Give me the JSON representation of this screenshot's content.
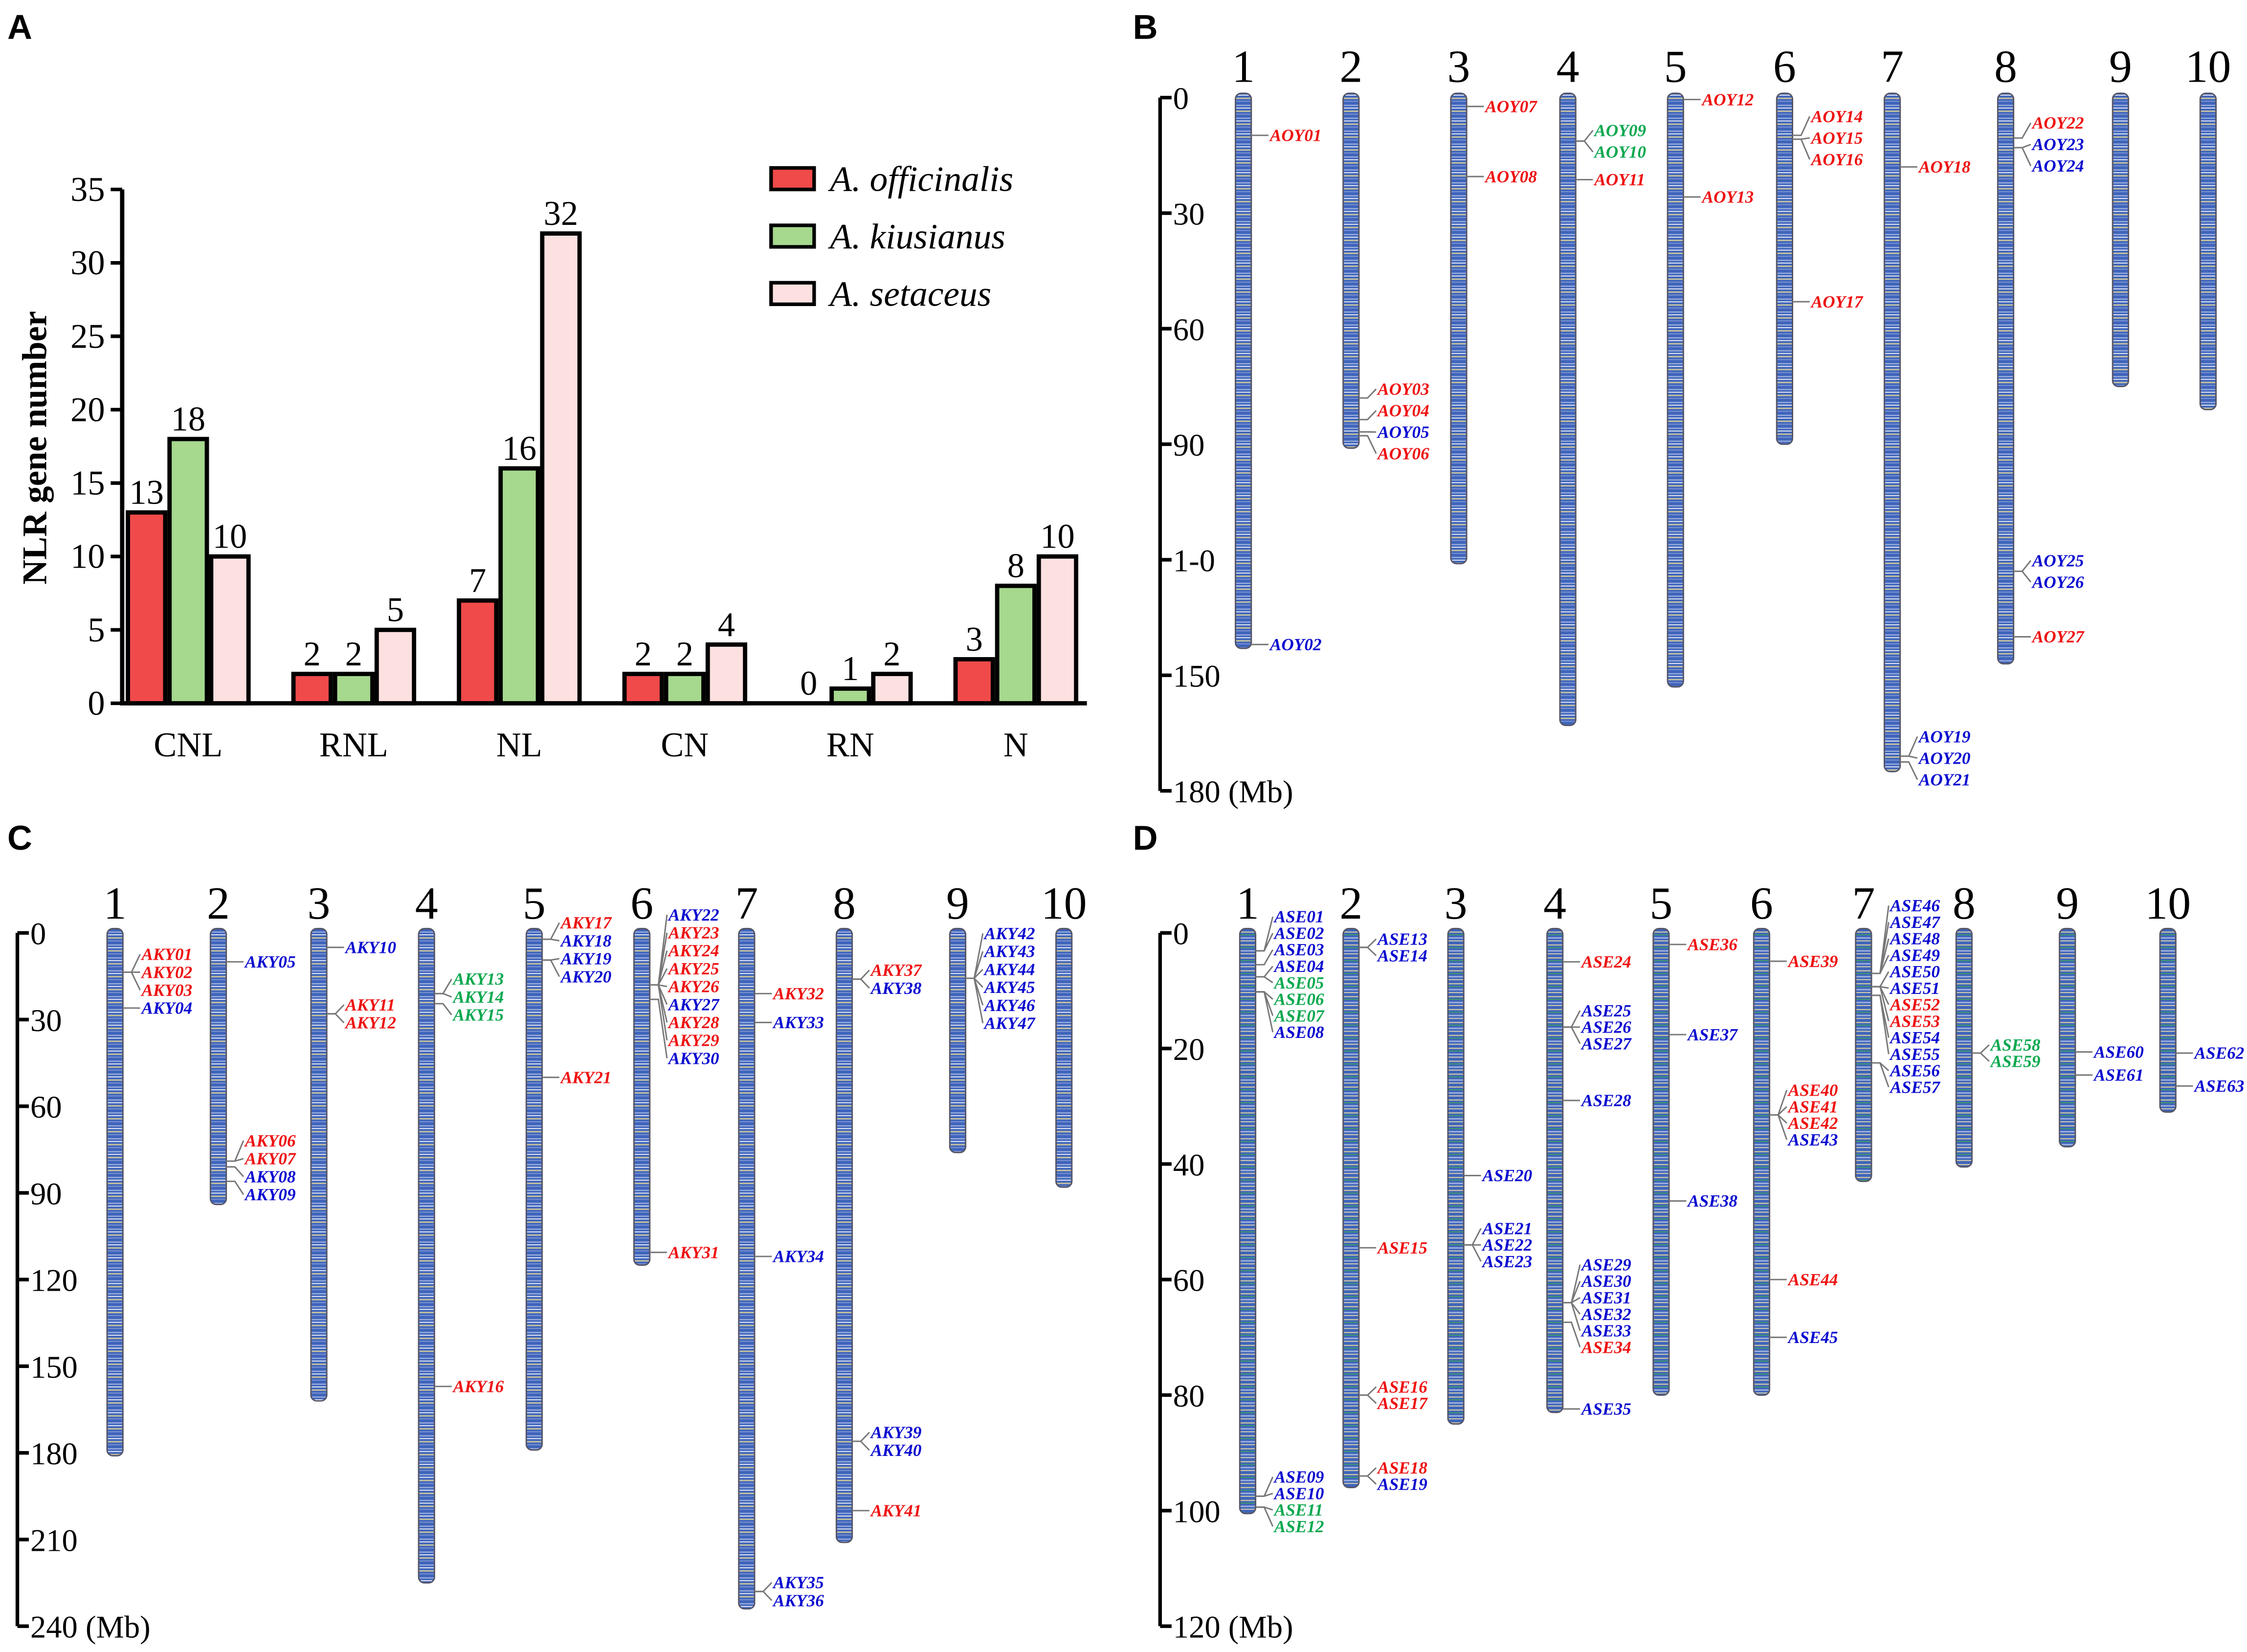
{
  "panel_letters": [
    "A",
    "B",
    "C",
    "D"
  ],
  "colors": {
    "r": "#ee1111",
    "b": "#0a0ad0",
    "g": "#0aa84f",
    "officinalis": "#f04a4a",
    "kiusianus": "#a6d88e",
    "setaceus": "#fde0e0"
  },
  "chart_data": {
    "type": "bar",
    "title": "",
    "xlabel": "",
    "ylabel": "NLR gene number",
    "ylim": [
      0,
      35
    ],
    "yticks": [
      "0",
      "5",
      "10",
      "15",
      "20",
      "25",
      "30",
      "35"
    ],
    "categories": [
      "CNL",
      "RNL",
      "NL",
      "CN",
      "RN",
      "N"
    ],
    "series": [
      {
        "name": "A. officinalis",
        "color_key": "officinalis",
        "values": [
          13,
          2,
          7,
          2,
          0,
          3
        ]
      },
      {
        "name": "A. kiusianus",
        "color_key": "kiusianus",
        "values": [
          18,
          2,
          16,
          2,
          1,
          8
        ]
      },
      {
        "name": "A. setaceus",
        "color_key": "setaceus",
        "values": [
          10,
          5,
          32,
          4,
          2,
          10
        ]
      }
    ],
    "legend_position": "top-right",
    "grid": false
  },
  "maps": [
    {
      "panel": "B",
      "axis_max": 180,
      "axis_ticks": [
        "0",
        "30",
        "60",
        "90",
        "1-0",
        "150",
        "180 (Mb)"
      ],
      "chromosomes": [
        {
          "name": "1",
          "length": 143,
          "genes": [
            [
              "AOY01",
              9.8,
              "r"
            ],
            [
              "AOY02",
              142,
              "b"
            ]
          ]
        },
        {
          "name": "2",
          "length": 91,
          "genes": [
            [
              "AOY03",
              78,
              "r"
            ],
            [
              "AOY04",
              83.6,
              "r"
            ],
            [
              "AOY05",
              86.8,
              "b"
            ],
            [
              "AOY06",
              87.8,
              "r"
            ]
          ]
        },
        {
          "name": "3",
          "length": 121,
          "genes": [
            [
              "AOY07",
              2.3,
              "r"
            ],
            [
              "AOY08",
              20.5,
              "r"
            ]
          ]
        },
        {
          "name": "4",
          "length": 163,
          "genes": [
            [
              "AOY09",
              11.3,
              "g"
            ],
            [
              "AOY10",
              11.3,
              "g"
            ],
            [
              "AOY11",
              21.3,
              "r"
            ]
          ]
        },
        {
          "name": "5",
          "length": 153,
          "genes": [
            [
              "AOY12",
              0.5,
              "r"
            ],
            [
              "AOY13",
              25.8,
              "r"
            ]
          ]
        },
        {
          "name": "6",
          "length": 90,
          "genes": [
            [
              "AOY14",
              9.8,
              "r"
            ],
            [
              "AOY15",
              10.8,
              "r"
            ],
            [
              "AOY16",
              10.8,
              "r"
            ],
            [
              "AOY17",
              53,
              "r"
            ]
          ]
        },
        {
          "name": "7",
          "length": 175,
          "genes": [
            [
              "AOY18",
              18,
              "r"
            ],
            [
              "AOY19",
              171,
              "b"
            ],
            [
              "AOY20",
              171,
              "b"
            ],
            [
              "AOY21",
              172.5,
              "b"
            ]
          ]
        },
        {
          "name": "8",
          "length": 147,
          "genes": [
            [
              "AOY22",
              10.5,
              "r"
            ],
            [
              "AOY23",
              13,
              "b"
            ],
            [
              "AOY24",
              13,
              "b"
            ],
            [
              "AOY25",
              123,
              "b"
            ],
            [
              "AOY26",
              123,
              "b"
            ],
            [
              "AOY27",
              140,
              "r"
            ]
          ]
        },
        {
          "name": "9",
          "length": 75,
          "genes": []
        },
        {
          "name": "10",
          "length": 81,
          "genes": []
        }
      ]
    },
    {
      "panel": "C",
      "axis_max": 240,
      "axis_ticks": [
        "0",
        "30",
        "60",
        "90",
        "120",
        "150",
        "180",
        "210",
        "240 (Mb)"
      ],
      "chromosomes": [
        {
          "name": "1",
          "length": 181,
          "genes": [
            [
              "AKY01",
              13.6,
              "r"
            ],
            [
              "AKY02",
              13.6,
              "r"
            ],
            [
              "AKY03",
              13.6,
              "r"
            ],
            [
              "AKY04",
              26,
              "b"
            ]
          ]
        },
        {
          "name": "2",
          "length": 94,
          "genes": [
            [
              "AKY05",
              10,
              "b"
            ],
            [
              "AKY06",
              79,
              "r"
            ],
            [
              "AKY07",
              79,
              "r"
            ],
            [
              "AKY08",
              81,
              "b"
            ],
            [
              "AKY09",
              86,
              "b"
            ]
          ]
        },
        {
          "name": "3",
          "length": 162,
          "genes": [
            [
              "AKY10",
              5,
              "b"
            ],
            [
              "AKY11",
              28,
              "r"
            ],
            [
              "AKY12",
              28,
              "r"
            ]
          ]
        },
        {
          "name": "4",
          "length": 225,
          "genes": [
            [
              "AKY13",
              21,
              "g"
            ],
            [
              "AKY14",
              21,
              "g"
            ],
            [
              "AKY15",
              24.5,
              "g"
            ],
            [
              "AKY16",
              157,
              "r"
            ]
          ]
        },
        {
          "name": "5",
          "length": 179,
          "genes": [
            [
              "AKY17",
              2.2,
              "r"
            ],
            [
              "AKY18",
              2.2,
              "b"
            ],
            [
              "AKY19",
              9.4,
              "b"
            ],
            [
              "AKY20",
              9.4,
              "b"
            ],
            [
              "AKY21",
              50,
              "r"
            ]
          ]
        },
        {
          "name": "6",
          "length": 115,
          "genes": [
            [
              "AKY22",
              18,
              "b"
            ],
            [
              "AKY23",
              18,
              "r"
            ],
            [
              "AKY24",
              18,
              "r"
            ],
            [
              "AKY25",
              18,
              "r"
            ],
            [
              "AKY26",
              18,
              "r"
            ],
            [
              "AKY27",
              18,
              "b"
            ],
            [
              "AKY28",
              18,
              "r"
            ],
            [
              "AKY29",
              18,
              "r"
            ],
            [
              "AKY30",
              23,
              "b"
            ],
            [
              "AKY31",
              110.6,
              "r"
            ]
          ]
        },
        {
          "name": "7",
          "length": 234,
          "genes": [
            [
              "AKY32",
              21,
              "r"
            ],
            [
              "AKY33",
              31,
              "b"
            ],
            [
              "AKY34",
              112,
              "b"
            ],
            [
              "AKY35",
              228,
              "b"
            ],
            [
              "AKY36",
              228,
              "b"
            ]
          ]
        },
        {
          "name": "8",
          "length": 211,
          "genes": [
            [
              "AKY37",
              16,
              "r"
            ],
            [
              "AKY38",
              16,
              "b"
            ],
            [
              "AKY39",
              176,
              "b"
            ],
            [
              "AKY40",
              176,
              "b"
            ],
            [
              "AKY41",
              200,
              "r"
            ]
          ]
        },
        {
          "name": "9",
          "length": 76,
          "genes": [
            [
              "AKY42",
              15.7,
              "b"
            ],
            [
              "AKY43",
              15.7,
              "b"
            ],
            [
              "AKY44",
              15.7,
              "b"
            ],
            [
              "AKY45",
              15.7,
              "b"
            ],
            [
              "AKY46",
              15.7,
              "b"
            ],
            [
              "AKY47",
              15.7,
              "b"
            ]
          ]
        },
        {
          "name": "10",
          "length": 88,
          "genes": []
        }
      ]
    },
    {
      "panel": "D",
      "axis_max": 120,
      "axis_ticks": [
        "0",
        "20",
        "40",
        "60",
        "80",
        "100",
        "120 (Mb)"
      ],
      "chromosomes": [
        {
          "name": "1",
          "length": 100.5,
          "genes": [
            [
              "ASE01",
              3.1,
              "b"
            ],
            [
              "ASE02",
              3.1,
              "b"
            ],
            [
              "ASE03",
              5.5,
              "b"
            ],
            [
              "ASE04",
              7.6,
              "b"
            ],
            [
              "ASE05",
              7.6,
              "g"
            ],
            [
              "ASE06",
              10.2,
              "g"
            ],
            [
              "ASE07",
              10.2,
              "g"
            ],
            [
              "ASE08",
              10.2,
              "b"
            ],
            [
              "ASE09",
              97.5,
              "b"
            ],
            [
              "ASE10",
              97.5,
              "b"
            ],
            [
              "ASE11",
              99.4,
              "g"
            ],
            [
              "ASE12",
              99.4,
              "g"
            ]
          ]
        },
        {
          "name": "2",
          "length": 96,
          "genes": [
            [
              "ASE13",
              2.5,
              "b"
            ],
            [
              "ASE14",
              2.5,
              "b"
            ],
            [
              "ASE15",
              54.5,
              "r"
            ],
            [
              "ASE16",
              80,
              "r"
            ],
            [
              "ASE17",
              80,
              "r"
            ],
            [
              "ASE18",
              94,
              "r"
            ],
            [
              "ASE19",
              94,
              "b"
            ]
          ]
        },
        {
          "name": "3",
          "length": 85,
          "genes": [
            [
              "ASE20",
              42,
              "b"
            ],
            [
              "ASE21",
              54,
              "b"
            ],
            [
              "ASE22",
              54,
              "b"
            ],
            [
              "ASE23",
              54,
              "b"
            ]
          ]
        },
        {
          "name": "4",
          "length": 83,
          "genes": [
            [
              "ASE24",
              5,
              "r"
            ],
            [
              "ASE25",
              16.3,
              "b"
            ],
            [
              "ASE26",
              16.3,
              "b"
            ],
            [
              "ASE27",
              16.3,
              "b"
            ],
            [
              "ASE28",
              29,
              "b"
            ],
            [
              "ASE29",
              64,
              "b"
            ],
            [
              "ASE30",
              64,
              "b"
            ],
            [
              "ASE31",
              64,
              "b"
            ],
            [
              "ASE32",
              64,
              "b"
            ],
            [
              "ASE33",
              64,
              "b"
            ],
            [
              "ASE34",
              67.4,
              "r"
            ],
            [
              "ASE35",
              82.4,
              "b"
            ]
          ]
        },
        {
          "name": "5",
          "length": 80,
          "genes": [
            [
              "ASE36",
              2,
              "r"
            ],
            [
              "ASE37",
              17.6,
              "b"
            ],
            [
              "ASE38",
              46.4,
              "b"
            ]
          ]
        },
        {
          "name": "6",
          "length": 80,
          "genes": [
            [
              "ASE39",
              4.9,
              "r"
            ],
            [
              "ASE40",
              31.5,
              "r"
            ],
            [
              "ASE41",
              31.5,
              "r"
            ],
            [
              "ASE42",
              31.5,
              "r"
            ],
            [
              "ASE43",
              31.5,
              "b"
            ],
            [
              "ASE44",
              60,
              "r"
            ],
            [
              "ASE45",
              70,
              "b"
            ]
          ]
        },
        {
          "name": "7",
          "length": 43,
          "genes": [
            [
              "ASE46",
              7,
              "b"
            ],
            [
              "ASE47",
              7,
              "b"
            ],
            [
              "ASE48",
              7,
              "b"
            ],
            [
              "ASE49",
              7,
              "b"
            ],
            [
              "ASE50",
              9.3,
              "b"
            ],
            [
              "ASE51",
              9.3,
              "b"
            ],
            [
              "ASE52",
              9.3,
              "r"
            ],
            [
              "ASE53",
              9.3,
              "r"
            ],
            [
              "ASE54",
              10.8,
              "b"
            ],
            [
              "ASE55",
              10.8,
              "b"
            ],
            [
              "ASE56",
              22.5,
              "b"
            ],
            [
              "ASE57",
              22.5,
              "b"
            ]
          ]
        },
        {
          "name": "8",
          "length": 40.5,
          "genes": [
            [
              "ASE58",
              20.8,
              "g"
            ],
            [
              "ASE59",
              20.8,
              "g"
            ]
          ]
        },
        {
          "name": "9",
          "length": 37,
          "genes": [
            [
              "ASE60",
              20.6,
              "b"
            ],
            [
              "ASE61",
              24.6,
              "b"
            ]
          ]
        },
        {
          "name": "10",
          "length": 31,
          "genes": [
            [
              "ASE62",
              20.8,
              "b"
            ],
            [
              "ASE63",
              26.5,
              "b"
            ]
          ]
        }
      ]
    }
  ]
}
